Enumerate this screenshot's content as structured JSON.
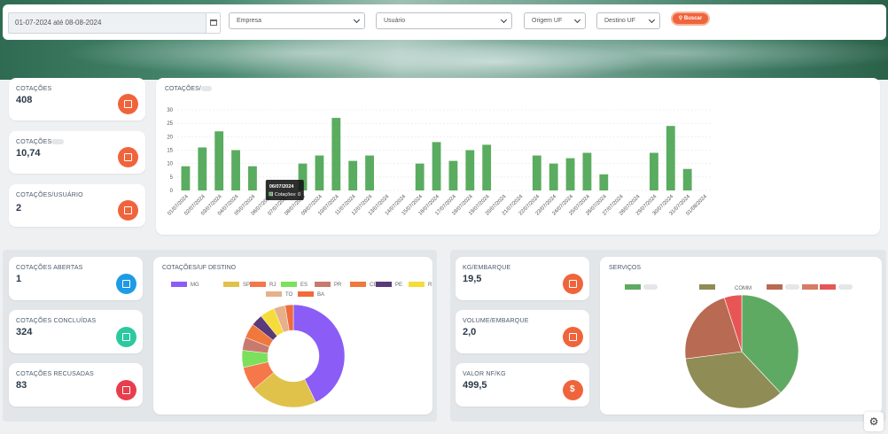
{
  "filters": {
    "date_range": "01-07-2024 até 08-08-2024",
    "empresa": "Empresa",
    "usuario": "Usuário",
    "origem_uf": "Origem UF",
    "destino_uf": "Destino UF",
    "buscar": "Buscar"
  },
  "cards": {
    "cotacoes": {
      "label": "COTAÇÕES",
      "value": "408",
      "color": "#f0643c",
      "icon": "copy-icon"
    },
    "cotacoes_media": {
      "label": "COTAÇÕES",
      "value": "10,74",
      "color": "#f0643c",
      "icon": "calendar-icon"
    },
    "cotacoes_usuario": {
      "label": "COTAÇÕES/USUÁRIO",
      "value": "2",
      "color": "#f0643c",
      "icon": "copy-icon"
    },
    "abertas": {
      "label": "COTAÇÕES ABERTAS",
      "value": "1",
      "color": "#1e9be6",
      "icon": "copy-icon"
    },
    "concluidas": {
      "label": "COTAÇÕES CONCLUÍDAS",
      "value": "324",
      "color": "#2cc9a0",
      "icon": "copy-icon"
    },
    "recusadas": {
      "label": "COTAÇÕES RECUSADAS",
      "value": "83",
      "color": "#e83e4c",
      "icon": "copy-icon"
    },
    "kg_embarque": {
      "label": "KG/EMBARQUE",
      "value": "19,5",
      "color": "#f0643c",
      "icon": "box-icon"
    },
    "volume_embarque": {
      "label": "VOLUME/EMBARQUE",
      "value": "2,0",
      "color": "#f0643c",
      "icon": "boxes-icon"
    },
    "valor_nf_kg": {
      "label": "VALOR NF/KG",
      "value": "499,5",
      "color": "#f0643c",
      "icon": "dollar-icon"
    }
  },
  "bar_panel": {
    "title": "COTAÇÕES/"
  },
  "tooltip": {
    "date": "06/07/2024",
    "text": "Cotações: 0"
  },
  "uf_panel": {
    "title": "COTAÇÕES/UF DESTINO"
  },
  "servicos_panel": {
    "title": "SERVIÇOS",
    "legend": [
      "",
      "COMM",
      "",
      "",
      ""
    ]
  },
  "chart_data": [
    {
      "type": "bar",
      "title": "COTAÇÕES/",
      "categories": [
        "01/07/2024",
        "02/07/2024",
        "03/07/2024",
        "04/07/2024",
        "05/07/2024",
        "06/07/2024",
        "07/07/2024",
        "08/07/2024",
        "09/07/2024",
        "10/07/2024",
        "11/07/2024",
        "12/07/2024",
        "13/07/2024",
        "14/07/2024",
        "15/07/2024",
        "16/07/2024",
        "17/07/2024",
        "18/07/2024",
        "19/07/2024",
        "20/07/2024",
        "21/07/2024",
        "22/07/2024",
        "23/07/2024",
        "24/07/2024",
        "25/07/2024",
        "26/07/2024",
        "27/07/2024",
        "28/07/2024",
        "29/07/2024",
        "30/07/2024",
        "31/07/2024",
        "01/08/2024"
      ],
      "values": [
        9,
        16,
        22,
        15,
        9,
        0,
        0,
        10,
        13,
        27,
        11,
        13,
        0,
        0,
        10,
        18,
        11,
        15,
        17,
        0,
        0,
        13,
        10,
        12,
        14,
        6,
        0,
        0,
        14,
        24,
        8,
        0
      ],
      "ylim": [
        0,
        30
      ],
      "yticks": [
        0,
        5,
        10,
        15,
        20,
        25,
        30
      ],
      "color": "#5aac60",
      "grid": true
    },
    {
      "type": "pie",
      "donut": true,
      "title": "COTAÇÕES/UF DESTINO",
      "categories": [
        "MG",
        "SP",
        "RJ",
        "ES",
        "PR",
        "CE",
        "PE",
        "RS",
        "TO",
        "BA"
      ],
      "values": [
        166,
        82,
        29,
        21,
        16,
        18,
        14,
        18,
        14,
        10
      ],
      "colors": [
        "#8b5cf6",
        "#e0c24a",
        "#f5774a",
        "#7be05c",
        "#c97a6e",
        "#f0783c",
        "#5a3a78",
        "#f5dc3a",
        "#e5b08a",
        "#f06a3c"
      ]
    },
    {
      "type": "pie",
      "title": "SERVIÇOS",
      "categories": [
        "",
        "COMM",
        "",
        "",
        ""
      ],
      "values": [
        38,
        35,
        22,
        0,
        5
      ],
      "colors": [
        "#5faa62",
        "#8f8c55",
        "#b86a52",
        "#d87a64",
        "#e85555"
      ]
    }
  ]
}
